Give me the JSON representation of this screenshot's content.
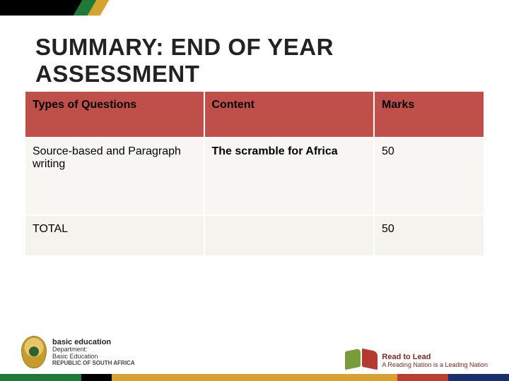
{
  "title": "SUMMARY: END OF YEAR ASSESSMENT",
  "table": {
    "columns": [
      "Types of Questions",
      "Content",
      "Marks"
    ],
    "rows": [
      {
        "c1": "Source-based and Paragraph writing",
        "c2": "The scramble for Africa",
        "c3": "50",
        "c2_bold": true
      },
      {
        "c1": "TOTAL",
        "c2": "",
        "c3": "50"
      }
    ],
    "header_bg": "#be5049",
    "row_bg_alt1": "#f7f6f2",
    "row_bg_alt2": "#f5f3ed",
    "border_color": "#ffffff",
    "col_widths_pct": [
      39,
      37,
      24
    ],
    "header_fontsize": 16,
    "cell_fontsize": 16
  },
  "crest": {
    "line1": "basic education",
    "line2": "Department:",
    "line3": "Basic Education",
    "line4": "REPUBLIC OF SOUTH AFRICA"
  },
  "readlead": {
    "line1": "Read to Lead",
    "line2": "A Reading Nation is a Leading Nation"
  },
  "footer_bar_colors": [
    "#1f7a3a",
    "#000000",
    "#d6a32e",
    "#bc3e33",
    "#1b2f6a"
  ]
}
